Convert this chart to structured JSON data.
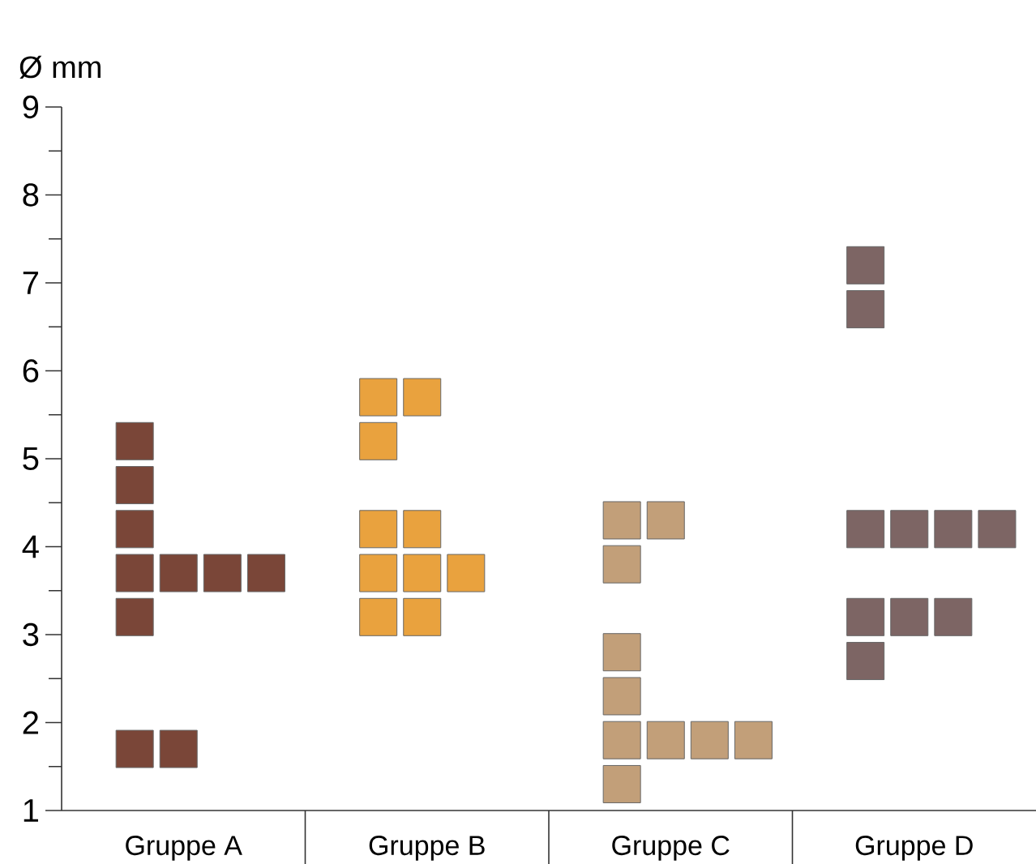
{
  "chart_data": {
    "type": "scatter",
    "ylabel": "Ø mm",
    "categories": [
      "Gruppe A",
      "Gruppe B",
      "Gruppe C",
      "Gruppe D"
    ],
    "series": [
      {
        "color": "#7a4638",
        "x": [
          "Gruppe A",
          "Gruppe A",
          "Gruppe A",
          "Gruppe A",
          "Gruppe A",
          "Gruppe A",
          "Gruppe A",
          "Gruppe A",
          "Gruppe A",
          "Gruppe A"
        ],
        "values": [
          5.2,
          4.7,
          4.2,
          3.7,
          3.7,
          3.7,
          3.7,
          3.2,
          1.7,
          1.7
        ]
      },
      {
        "color": "#e9a23e",
        "x": [
          "Gruppe B",
          "Gruppe B",
          "Gruppe B",
          "Gruppe B",
          "Gruppe B",
          "Gruppe B",
          "Gruppe B",
          "Gruppe B",
          "Gruppe B",
          "Gruppe B"
        ],
        "values": [
          5.7,
          5.7,
          5.2,
          4.2,
          4.2,
          3.7,
          3.7,
          3.7,
          3.2,
          3.2
        ]
      },
      {
        "color": "#c29f79",
        "x": [
          "Gruppe C",
          "Gruppe C",
          "Gruppe C",
          "Gruppe C",
          "Gruppe C",
          "Gruppe C",
          "Gruppe C",
          "Gruppe C",
          "Gruppe C",
          "Gruppe C"
        ],
        "values": [
          4.3,
          4.3,
          3.8,
          2.8,
          2.3,
          1.8,
          1.8,
          1.8,
          1.8,
          1.3
        ]
      },
      {
        "color": "#7d6564",
        "x": [
          "Gruppe D",
          "Gruppe D",
          "Gruppe D",
          "Gruppe D",
          "Gruppe D",
          "Gruppe D",
          "Gruppe D",
          "Gruppe D",
          "Gruppe D",
          "Gruppe D"
        ],
        "values": [
          7.2,
          6.7,
          4.2,
          4.2,
          4.2,
          4.2,
          3.2,
          3.2,
          3.2,
          2.7
        ]
      }
    ],
    "ylim": [
      1,
      9
    ],
    "yticks": [
      1,
      2,
      3,
      4,
      5,
      6,
      7,
      8,
      9
    ],
    "marker": "square",
    "grid": false,
    "legend": false
  }
}
